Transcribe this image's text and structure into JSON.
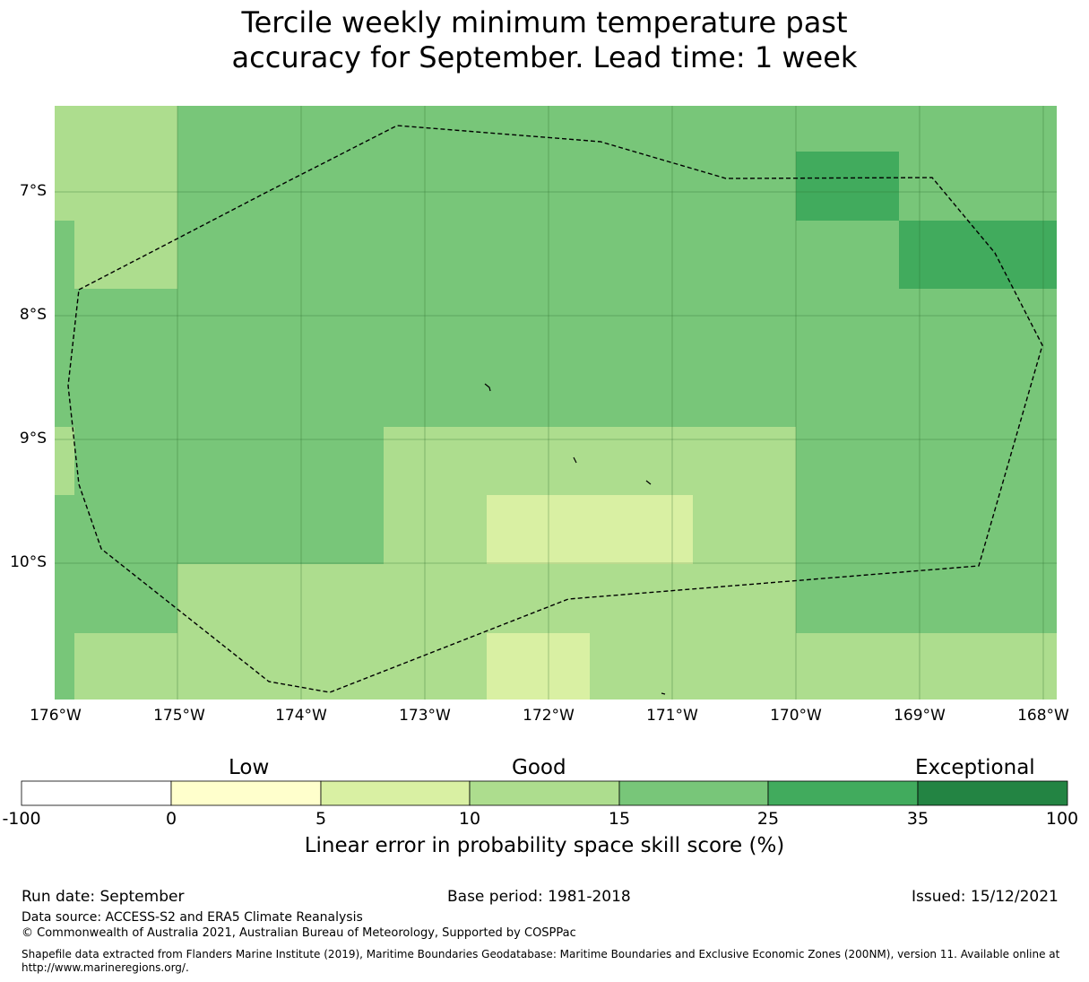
{
  "title_line1": "Tercile weekly minimum temperature past",
  "title_line2": "accuracy for September. Lead time: 1 week",
  "map": {
    "lon_ticks": [
      "176°W",
      "175°W",
      "174°W",
      "173°W",
      "172°W",
      "171°W",
      "170°W",
      "169°W",
      "168°W"
    ],
    "lat_ticks": [
      "7°S",
      "8°S",
      "9°S",
      "10°S"
    ]
  },
  "colorbar": {
    "category_labels": {
      "low": "Low",
      "good": "Good",
      "exceptional": "Exceptional"
    },
    "boundaries": [
      "-100",
      "0",
      "5",
      "10",
      "15",
      "25",
      "35",
      "100"
    ],
    "colors": [
      "#ffffff",
      "#ffffcc",
      "#d9f0a3",
      "#addd8e",
      "#78c679",
      "#41ab5d",
      "#238443"
    ],
    "title": "Linear error in probability space skill score (%)"
  },
  "footer": {
    "run_date": "Run date: September",
    "base_period": "Base period: 1981-2018",
    "issued": "Issued: 15/12/2021",
    "data_source": "Data source: ACCESS-S2 and ERA5 Climate Reanalysis",
    "copyright": "© Commonwealth of Australia 2021, Australian Bureau of Meteorology, Supported by COSPPac",
    "shapefile_line1": "Shapefile data extracted from Flanders Marine Institute (2019), Maritime Boundaries Geodatabase: Maritime Boundaries and Exclusive Economic Zones (200NM), version 11. Available online at",
    "shapefile_line2": "http://www.marineregions.org/."
  }
}
